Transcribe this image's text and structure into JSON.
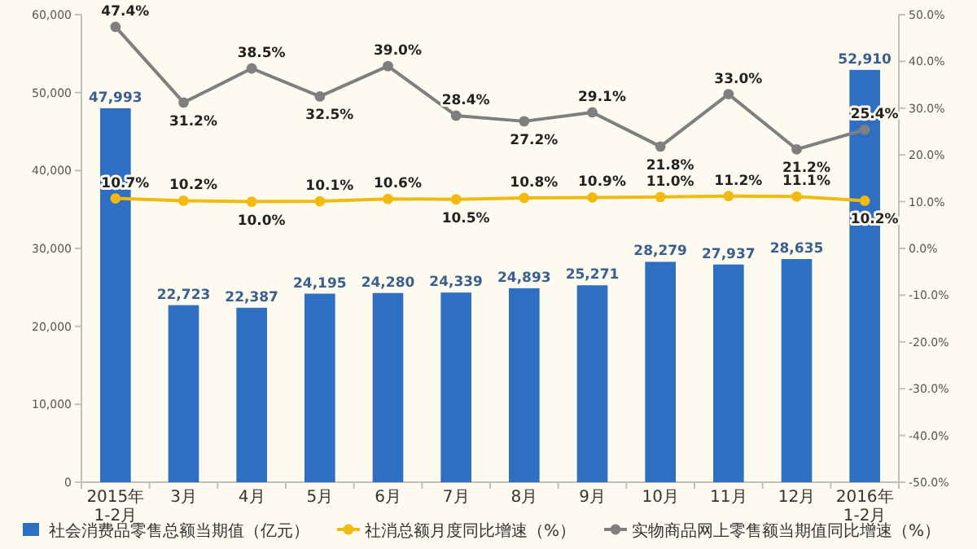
{
  "chart_data": {
    "type": "bar",
    "categories": [
      "2015年\n1-2月",
      "3月",
      "4月",
      "5月",
      "6月",
      "7月",
      "8月",
      "9月",
      "10月",
      "11月",
      "12月",
      "2016年\n1-2月"
    ],
    "series": [
      {
        "name": "社会消费品零售总额当期值（亿元）",
        "color": "#2f6fc2",
        "values": [
          47993,
          22723,
          22387,
          24195,
          24280,
          24339,
          24893,
          25271,
          28279,
          27937,
          28635,
          52910
        ],
        "value_labels": [
          "47,993",
          "22,723",
          "22,387",
          "24,195",
          "24,280",
          "24,339",
          "24,893",
          "25,271",
          "28,279",
          "27,937",
          "28,635",
          "52,910"
        ]
      },
      {
        "name": "社消总额月度同比增速（%）",
        "type": "line",
        "axis": "y2",
        "color": "#f2b90f",
        "values": [
          10.7,
          10.2,
          10.0,
          10.1,
          10.6,
          10.5,
          10.8,
          10.9,
          11.0,
          11.2,
          11.1,
          10.2
        ],
        "value_labels": [
          "10.7%",
          "10.2%",
          "10.0%",
          "10.1%",
          "10.6%",
          "10.5%",
          "10.8%",
          "10.9%",
          "11.0%",
          "11.2%",
          "11.1%",
          "10.2%"
        ]
      },
      {
        "name": "实物商品网上零售额当期值同比增速（%）",
        "type": "line",
        "axis": "y2",
        "color": "#7f7f7f",
        "values": [
          47.4,
          31.2,
          38.5,
          32.5,
          39.0,
          28.4,
          27.2,
          29.1,
          21.8,
          33.0,
          21.2,
          25.4
        ],
        "value_labels": [
          "47.4%",
          "31.2%",
          "38.5%",
          "32.5%",
          "39.0%",
          "28.4%",
          "27.2%",
          "29.1%",
          "21.8%",
          "33.0%",
          "21.2%",
          "25.4%"
        ]
      }
    ],
    "ylim": [
      0,
      60000
    ],
    "yticks": [
      {
        "value": 0,
        "label": "0"
      },
      {
        "value": 10000,
        "label": "10,000"
      },
      {
        "value": 20000,
        "label": "20,000"
      },
      {
        "value": 30000,
        "label": "30,000"
      },
      {
        "value": 40000,
        "label": "40,000"
      },
      {
        "value": 50000,
        "label": "50,000"
      },
      {
        "value": 60000,
        "label": "60,000"
      }
    ],
    "y2lim": [
      -50,
      50
    ],
    "y2ticks": [
      {
        "value": -50,
        "label": "-50.0%"
      },
      {
        "value": -40,
        "label": "-40.0%"
      },
      {
        "value": -30,
        "label": "-30.0%"
      },
      {
        "value": -20,
        "label": "-20.0%"
      },
      {
        "value": -10,
        "label": "-10.0%"
      },
      {
        "value": 0,
        "label": "0.0%"
      },
      {
        "value": 10,
        "label": "10.0%"
      },
      {
        "value": 20,
        "label": "20.0%"
      },
      {
        "value": 30,
        "label": "30.0%"
      },
      {
        "value": 40,
        "label": "40.0%"
      },
      {
        "value": 50,
        "label": "50.0%"
      }
    ],
    "legend": "bottom",
    "marker": "circle"
  }
}
